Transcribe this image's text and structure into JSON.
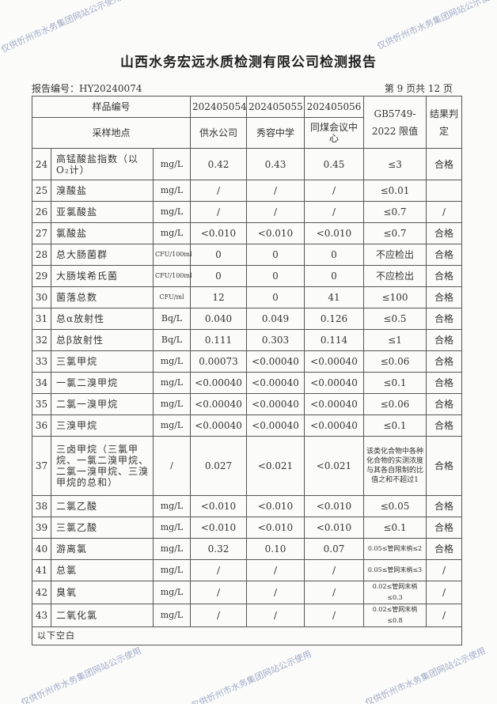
{
  "title": "山西水务宏远水质检测有限公司检测报告",
  "report_no": "报告编号：HY20240074",
  "page_no": "第 9 页共 12 页",
  "header": {
    "sample_no_label": "样品编号",
    "location_label": "采样地点",
    "samples": [
      "202405054",
      "202405055",
      "202405056"
    ],
    "locations": [
      "供水公司",
      "秀容中学",
      "同煤会议中心"
    ],
    "limit_label": "GB5749-2022 限值",
    "result_label": "结果判定"
  },
  "rows": [
    {
      "no": "24",
      "name": "高锰酸盐指数（以O₂计）",
      "unit": "mg/L",
      "v": [
        "0.42",
        "0.43",
        "0.45"
      ],
      "limit": "≤3",
      "result": "合格"
    },
    {
      "no": "25",
      "name": "溴酸盐",
      "unit": "mg/L",
      "v": [
        "/",
        "/",
        "/"
      ],
      "limit": "≤0.01",
      "result": ""
    },
    {
      "no": "26",
      "name": "亚氯酸盐",
      "unit": "mg/L",
      "v": [
        "/",
        "/",
        "/"
      ],
      "limit": "≤0.7",
      "result": "/"
    },
    {
      "no": "27",
      "name": "氯酸盐",
      "unit": "mg/L",
      "v": [
        "<0.010",
        "<0.010",
        "<0.010"
      ],
      "limit": "≤0.7",
      "result": "合格"
    },
    {
      "no": "28",
      "name": "总大肠菌群",
      "unit": "CFU/100ml",
      "v": [
        "0",
        "0",
        "0"
      ],
      "limit": "不应检出",
      "result": "合格"
    },
    {
      "no": "29",
      "name": "大肠埃希氏菌",
      "unit": "CFU/100ml",
      "v": [
        "0",
        "0",
        "0"
      ],
      "limit": "不应检出",
      "result": "合格"
    },
    {
      "no": "30",
      "name": "菌落总数",
      "unit": "CFU/ml",
      "v": [
        "12",
        "0",
        "41"
      ],
      "limit": "≤100",
      "result": "合格"
    },
    {
      "no": "31",
      "name": "总α放射性",
      "unit": "Bq/L",
      "v": [
        "0.040",
        "0.049",
        "0.126"
      ],
      "limit": "≤0.5",
      "result": "合格"
    },
    {
      "no": "32",
      "name": "总β放射性",
      "unit": "Bq/L",
      "v": [
        "0.111",
        "0.303",
        "0.114"
      ],
      "limit": "≤1",
      "result": "合格"
    },
    {
      "no": "33",
      "name": "三氯甲烷",
      "unit": "mg/L",
      "v": [
        "0.00073",
        "<0.00040",
        "<0.00040"
      ],
      "limit": "≤0.06",
      "result": "合格"
    },
    {
      "no": "34",
      "name": "一氯二溴甲烷",
      "unit": "mg/L",
      "v": [
        "<0.00040",
        "<0.00040",
        "<0.00040"
      ],
      "limit": "≤0.1",
      "result": "合格"
    },
    {
      "no": "35",
      "name": "二氯一溴甲烷",
      "unit": "mg/L",
      "v": [
        "<0.00040",
        "<0.00040",
        "<0.00040"
      ],
      "limit": "≤0.06",
      "result": "合格"
    },
    {
      "no": "36",
      "name": "三溴甲烷",
      "unit": "mg/L",
      "v": [
        "<0.00040",
        "<0.00040",
        "<0.00040"
      ],
      "limit": "≤0.1",
      "result": "合格"
    },
    {
      "no": "37",
      "name": "三卤甲烷（三氯甲烷、一氯二溴甲烷、二氯一溴甲烷、三溴甲烷的总和）",
      "unit": "/",
      "v": [
        "0.027",
        "<0.021",
        "<0.021"
      ],
      "limit": "该类化合物中各种化合物的实测浓度与其各自限制的比值之和不超过1",
      "result": "合格"
    },
    {
      "no": "38",
      "name": "二氯乙酸",
      "unit": "mg/L",
      "v": [
        "<0.010",
        "<0.010",
        "<0.010"
      ],
      "limit": "≤0.05",
      "result": "合格"
    },
    {
      "no": "39",
      "name": "三氯乙酸",
      "unit": "mg/L",
      "v": [
        "<0.010",
        "<0.010",
        "<0.010"
      ],
      "limit": "≤0.1",
      "result": "合格"
    },
    {
      "no": "40",
      "name": "游离氯",
      "unit": "mg/L",
      "v": [
        "0.32",
        "0.10",
        "0.07"
      ],
      "limit": "0.05≤管网末梢≤2",
      "result": "合格"
    },
    {
      "no": "41",
      "name": "总氯",
      "unit": "mg/L",
      "v": [
        "/",
        "/",
        "/"
      ],
      "limit": "0.05≤管网末梢≤3",
      "result": "/"
    },
    {
      "no": "42",
      "name": "臭氧",
      "unit": "mg/L",
      "v": [
        "/",
        "/",
        "/"
      ],
      "limit": "0.02≤管网末梢≤0.3",
      "result": "/"
    },
    {
      "no": "43",
      "name": "二氧化氯",
      "unit": "mg/L",
      "v": [
        "/",
        "/",
        "/"
      ],
      "limit": "0.02≤管网末梢≤0.8",
      "result": "/"
    }
  ],
  "footer_note": "以下空白",
  "watermark": "仅供忻州市水务集团网站公示使用"
}
